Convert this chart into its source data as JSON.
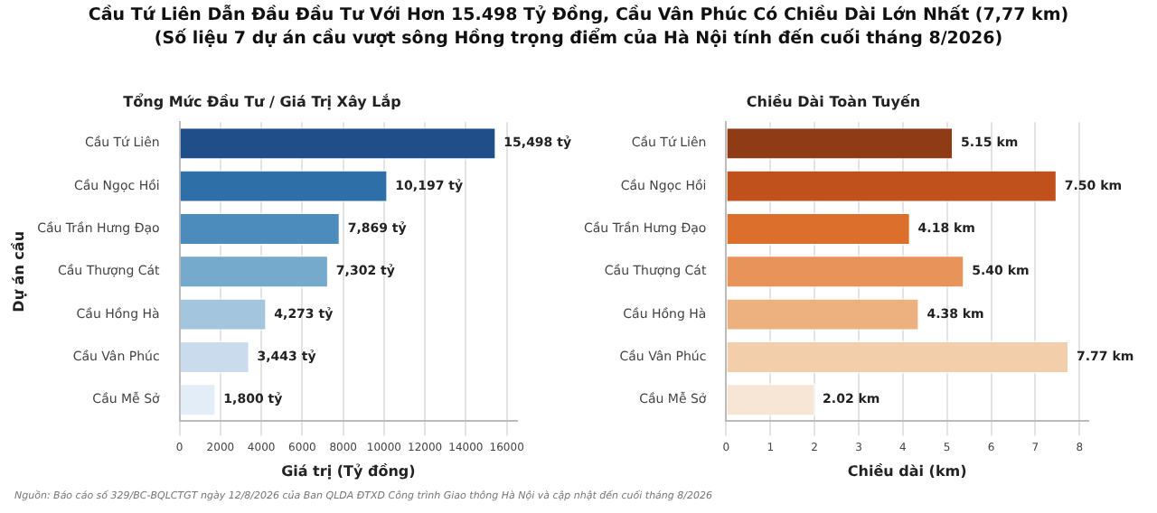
{
  "chart_data": [
    {
      "type": "other",
      "title": "Cầu Tứ Liên Dẫn Đầu Đầu Tư Với Hơn 15.498 Tỷ Đồng, Cầu Vân Phúc Có Chiều Dài Lớn Nhất (7,77 km)",
      "subtitle": "(Số liệu 7 dự án cầu vượt sông Hồng trọng điểm của Hà Nội tính đến cuối tháng 8/2026)",
      "annotations": [
        "Nguồn: Báo cáo số 329/BC-BQLCTGT ngày 12/8/2026 của Ban QLDA ĐTXD Công trình Giao thông Hà Nội và cập nhật đến cuối tháng 8/2026"
      ]
    },
    {
      "type": "bar",
      "orientation": "horizontal",
      "title": "Tổng Mức Đầu Tư / Giá Trị Xây Lắp",
      "xlabel": "Giá trị (Tỷ đồng)",
      "ylabel": "Dự án cầu",
      "categories": [
        "Cầu Tứ Liên",
        "Cầu Ngọc Hồi",
        "Cầu Trần Hưng Đạo",
        "Cầu Thượng Cát",
        "Cầu Hồng Hà",
        "Cầu Vân Phúc",
        "Cầu Mễ Sở"
      ],
      "values": [
        15498,
        10197,
        7869,
        7302,
        4273,
        3443,
        1800
      ],
      "colors": [
        "#1f4e89",
        "#2e6fa8",
        "#4b8cbd",
        "#75aacd",
        "#a3c6dc",
        "#c9dbec",
        "#e3edf7"
      ],
      "value_labels": [
        "15,498 tỷ",
        "10,197 tỷ",
        "7,869 tỷ",
        "7,302 tỷ",
        "4,273 tỷ",
        "3,443 tỷ",
        "1,800 tỷ"
      ],
      "xlim": [
        0,
        16500
      ],
      "xticks": [
        0,
        2000,
        4000,
        6000,
        8000,
        10000,
        12000,
        14000,
        16000
      ],
      "grid": "x",
      "legend": false
    },
    {
      "type": "bar",
      "orientation": "horizontal",
      "title": "Chiều Dài Toàn Tuyến",
      "xlabel": "Chiều dài (km)",
      "categories": [
        "Cầu Tứ Liên",
        "Cầu Ngọc Hồi",
        "Cầu Trần Hưng Đạo",
        "Cầu Thượng Cát",
        "Cầu Hồng Hà",
        "Cầu Vân Phúc",
        "Cầu Mễ Sở"
      ],
      "values": [
        5.15,
        7.5,
        4.18,
        5.4,
        4.38,
        7.77,
        2.02
      ],
      "colors": [
        "#8e3b16",
        "#c0501c",
        "#dc6f2b",
        "#e8935a",
        "#edb07f",
        "#f2cfaa",
        "#f7e6d6"
      ],
      "value_labels": [
        "5.15 km",
        "7.50 km",
        "4.18 km",
        "5.40 km",
        "4.38 km",
        "7.77 km",
        "2.02 km"
      ],
      "xlim": [
        0,
        8.2
      ],
      "xticks": [
        0,
        1,
        2,
        3,
        4,
        5,
        6,
        7,
        8
      ],
      "grid": "x",
      "legend": false
    }
  ]
}
